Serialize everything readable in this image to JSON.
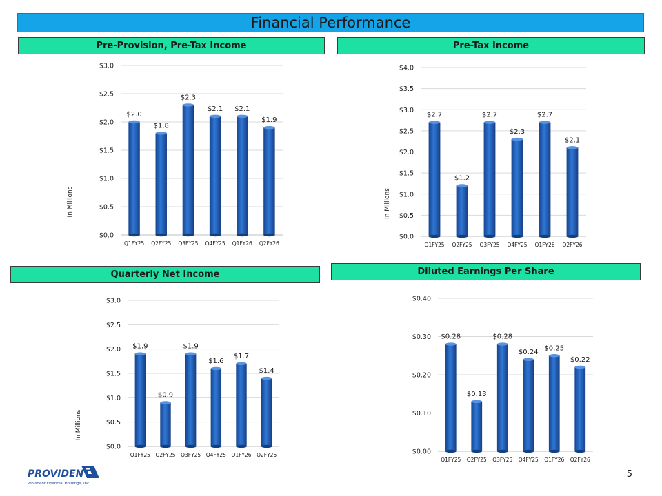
{
  "page": {
    "title": "Financial Performance",
    "page_number": "5"
  },
  "logo": {
    "name": "PROVIDENT",
    "subtitle": "Provident Financial Holdings, Inc."
  },
  "colors": {
    "title_bar": "#16a4e8",
    "section_bar": "#1fe0a3",
    "bar_fill": "#1f5fb8",
    "bar_dark": "#123f7d",
    "gridline": "#d9d9d9"
  },
  "chart_data": [
    {
      "type": "bar",
      "title": "Pre-Provision, Pre-Tax Income",
      "ylabel": "In Millions",
      "categories": [
        "Q1FY25",
        "Q2FY25",
        "Q3FY25",
        "Q4FY25",
        "Q1FY26",
        "Q2FY26"
      ],
      "values": [
        2.0,
        1.8,
        2.3,
        2.1,
        2.1,
        1.9
      ],
      "value_labels": [
        "$2.0",
        "$1.8",
        "$2.3",
        "$2.1",
        "$2.1",
        "$1.9"
      ],
      "ylim": [
        0,
        3.0
      ],
      "yticks": [
        0,
        0.5,
        1.0,
        1.5,
        2.0,
        2.5,
        3.0
      ],
      "ytick_labels": [
        "$0.0",
        "$0.5",
        "$1.0",
        "$1.5",
        "$2.0",
        "$2.5",
        "$3.0"
      ],
      "grid": true
    },
    {
      "type": "bar",
      "title": "Pre-Tax Income",
      "ylabel": "In Millions",
      "categories": [
        "Q1FY25",
        "Q2FY25",
        "Q3FY25",
        "Q4FY25",
        "Q1FY26",
        "Q2FY26"
      ],
      "values": [
        2.7,
        1.2,
        2.7,
        2.3,
        2.7,
        2.1
      ],
      "value_labels": [
        "$2.7",
        "$1.2",
        "$2.7",
        "$2.3",
        "$2.7",
        "$2.1"
      ],
      "ylim": [
        0,
        4.0
      ],
      "yticks": [
        0,
        0.5,
        1.0,
        1.5,
        2.0,
        2.5,
        3.0,
        3.5,
        4.0
      ],
      "ytick_labels": [
        "$0.0",
        "$0.5",
        "$1.0",
        "$1.5",
        "$2.0",
        "$2.5",
        "$3.0",
        "$3.5",
        "$4.0"
      ],
      "grid": true
    },
    {
      "type": "bar",
      "title": "Quarterly Net Income",
      "ylabel": "In Millions",
      "categories": [
        "Q1FY25",
        "Q2FY25",
        "Q3FY25",
        "Q4FY25",
        "Q1FY26",
        "Q2FY26"
      ],
      "values": [
        1.9,
        0.9,
        1.9,
        1.6,
        1.7,
        1.4
      ],
      "value_labels": [
        "$1.9",
        "$0.9",
        "$1.9",
        "$1.6",
        "$1.7",
        "$1.4"
      ],
      "ylim": [
        0,
        3.0
      ],
      "yticks": [
        0,
        0.5,
        1.0,
        1.5,
        2.0,
        2.5,
        3.0
      ],
      "ytick_labels": [
        "$0.0",
        "$0.5",
        "$1.0",
        "$1.5",
        "$2.0",
        "$2.5",
        "$3.0"
      ],
      "grid": true
    },
    {
      "type": "bar",
      "title": "Diluted Earnings Per Share",
      "ylabel": "",
      "categories": [
        "Q1FY25",
        "Q2FY25",
        "Q3FY25",
        "Q4FY25",
        "Q1FY26",
        "Q2FY26"
      ],
      "values": [
        0.28,
        0.13,
        0.28,
        0.24,
        0.25,
        0.22
      ],
      "value_labels": [
        "$0.28",
        "$0.13",
        "$0.28",
        "$0.24",
        "$0.25",
        "$0.22"
      ],
      "ylim": [
        0,
        0.4
      ],
      "yticks": [
        0,
        0.1,
        0.2,
        0.3,
        0.4
      ],
      "ytick_labels": [
        "$0.00",
        "$0.10",
        "$0.20",
        "$0.30",
        "$0.40"
      ],
      "grid": true
    }
  ]
}
